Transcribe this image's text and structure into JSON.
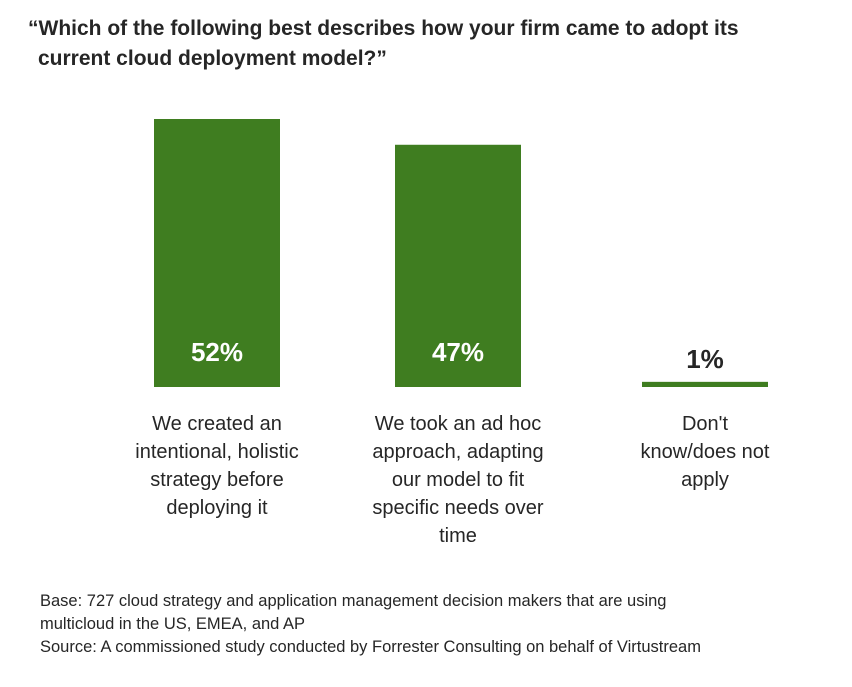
{
  "title_line1": "“Which of the following best describes how your firm came to adopt its",
  "title_line2": "current cloud deployment model?”",
  "colors": {
    "bar": "#3f7d20",
    "bar_label_inside": "#ffffff",
    "bar_label_outside": "#262626"
  },
  "chart_data": {
    "type": "bar",
    "categories": [
      "We created an intentional, holistic strategy before deploying it",
      "We took an ad hoc approach, adapting our model to fit specific needs over time",
      "Don't know/does not apply"
    ],
    "values": [
      52,
      47,
      1
    ],
    "value_labels": [
      "52%",
      "47%",
      "1%"
    ],
    "ylim": [
      0,
      52
    ],
    "grid": false,
    "legend": "none"
  },
  "footnote": {
    "base_line1": "Base: 727 cloud strategy and application management decision makers that are using",
    "base_line2": "multicloud in the US, EMEA, and AP",
    "source": "Source: A commissioned study conducted by Forrester Consulting on behalf of Virtustream"
  }
}
